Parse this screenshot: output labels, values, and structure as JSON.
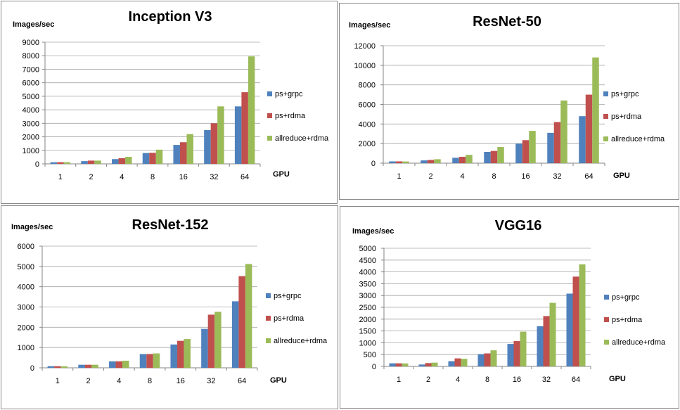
{
  "legend": [
    {
      "name": "ps+grpc",
      "color": "#4f81bd"
    },
    {
      "name": "ps+rdma",
      "color": "#c0504d"
    },
    {
      "name": "allreduce+rdma",
      "color": "#9bbb59"
    }
  ],
  "chart_data": [
    {
      "type": "bar",
      "title": "Inception V3",
      "ylabel": "Images/sec",
      "xlabel": "GPU",
      "categories": [
        "1",
        "2",
        "4",
        "8",
        "16",
        "32",
        "64"
      ],
      "ylim": [
        0,
        9000
      ],
      "yticks": [
        "0",
        "1000",
        "2000",
        "3000",
        "4000",
        "5000",
        "6000",
        "7000",
        "8000",
        "9000"
      ],
      "grid": true,
      "legend_position": "right",
      "series": [
        {
          "name": "ps+grpc",
          "values": [
            120,
            200,
            350,
            800,
            1400,
            2500,
            4250
          ]
        },
        {
          "name": "ps+rdma",
          "values": [
            125,
            240,
            420,
            820,
            1600,
            3000,
            5300
          ]
        },
        {
          "name": "allreduce+rdma",
          "values": [
            120,
            240,
            520,
            1050,
            2200,
            4250,
            7950
          ]
        }
      ]
    },
    {
      "type": "bar",
      "title": "ResNet-50",
      "ylabel": "Images/sec",
      "xlabel": "GPU",
      "categories": [
        "1",
        "2",
        "4",
        "8",
        "16",
        "32",
        "64"
      ],
      "ylim": [
        0,
        12000
      ],
      "yticks": [
        "0",
        "2000",
        "4000",
        "6000",
        "8000",
        "10000",
        "12000"
      ],
      "grid": true,
      "legend_position": "right",
      "series": [
        {
          "name": "ps+grpc",
          "values": [
            180,
            280,
            550,
            1150,
            2000,
            3100,
            4800
          ]
        },
        {
          "name": "ps+rdma",
          "values": [
            180,
            330,
            650,
            1250,
            2350,
            4200,
            7000
          ]
        },
        {
          "name": "allreduce+rdma",
          "values": [
            170,
            400,
            850,
            1650,
            3300,
            6400,
            10800
          ]
        }
      ]
    },
    {
      "type": "bar",
      "title": "ResNet-152",
      "ylabel": "Images/sec",
      "xlabel": "GPU",
      "categories": [
        "1",
        "2",
        "4",
        "8",
        "16",
        "32",
        "64"
      ],
      "ylim": [
        0,
        6000
      ],
      "yticks": [
        "0",
        "1000",
        "2000",
        "3000",
        "4000",
        "5000",
        "6000"
      ],
      "grid": true,
      "legend_position": "right",
      "series": [
        {
          "name": "ps+grpc",
          "values": [
            80,
            150,
            320,
            680,
            1150,
            1920,
            3280
          ]
        },
        {
          "name": "ps+rdma",
          "values": [
            80,
            150,
            320,
            680,
            1330,
            2620,
            4520
          ]
        },
        {
          "name": "allreduce+rdma",
          "values": [
            75,
            150,
            350,
            710,
            1420,
            2760,
            5120
          ]
        }
      ]
    },
    {
      "type": "bar",
      "title": "VGG16",
      "ylabel": "Images/sec",
      "xlabel": "GPU",
      "categories": [
        "1",
        "2",
        "4",
        "8",
        "16",
        "32",
        "64"
      ],
      "ylim": [
        0,
        5000
      ],
      "yticks": [
        "0",
        "500",
        "1000",
        "1500",
        "2000",
        "2500",
        "3000",
        "3500",
        "4000",
        "4500",
        "5000"
      ],
      "grid": true,
      "legend_position": "right",
      "series": [
        {
          "name": "ps+grpc",
          "values": [
            130,
            80,
            220,
            520,
            950,
            1700,
            3080
          ]
        },
        {
          "name": "ps+rdma",
          "values": [
            130,
            140,
            340,
            550,
            1070,
            2130,
            3800
          ]
        },
        {
          "name": "allreduce+rdma",
          "values": [
            125,
            160,
            320,
            680,
            1470,
            2690,
            4320
          ]
        }
      ]
    }
  ]
}
